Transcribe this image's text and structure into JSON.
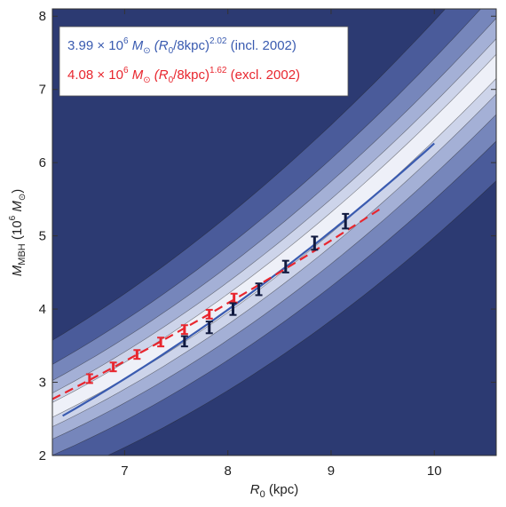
{
  "chart_data": {
    "type": "line",
    "xlabel_main": "R",
    "xlabel_sub": "0",
    "xlabel_unit": " (kpc)",
    "ylabel_main": "M",
    "ylabel_sub": "MBH",
    "ylabel_unit_open": " (10",
    "ylabel_unit_exp": "6",
    "ylabel_unit_sym": " M",
    "ylabel_unit_sun": "⊙",
    "ylabel_unit_close": ")",
    "xlim": [
      6.3,
      10.6
    ],
    "ylim": [
      2.0,
      8.1
    ],
    "x_ticks": [
      7,
      8,
      9,
      10
    ],
    "y_ticks": [
      2,
      3,
      4,
      5,
      6,
      7,
      8
    ],
    "grid": false,
    "legend_position": "top-left",
    "series": [
      {
        "name": "3.99 × 10^6 M⊙ (R0/8kpc)^2.02 (incl. 2002)",
        "legend_parts": {
          "coef": "3.99 × 10",
          "exp1": "6",
          "unit": " M",
          "sun": "⊙",
          "lparen": " (R",
          "sub": "0",
          "mid": "/8kpc)",
          "exp2": "2.02",
          "tail": " (incl. 2002)"
        },
        "color": "#3a5bb0",
        "dash": "solid",
        "coefficient": 3.99,
        "exponent": 2.02,
        "x_range": [
          6.4,
          10.0
        ],
        "points": [
          {
            "x": 7.58,
            "y": 3.56,
            "err": 0.07
          },
          {
            "x": 7.82,
            "y": 3.75,
            "err": 0.08
          },
          {
            "x": 8.05,
            "y": 4.0,
            "err": 0.08
          },
          {
            "x": 8.3,
            "y": 4.27,
            "err": 0.08
          },
          {
            "x": 8.56,
            "y": 4.58,
            "err": 0.08
          },
          {
            "x": 8.84,
            "y": 4.9,
            "err": 0.09
          },
          {
            "x": 9.14,
            "y": 5.2,
            "err": 0.1
          }
        ]
      },
      {
        "name": "4.08 × 10^6 M⊙ (R0/8kpc)^1.62 (excl. 2002)",
        "legend_parts": {
          "coef": "4.08 × 10",
          "exp1": "6",
          "unit": " M",
          "sun": "⊙",
          "lparen": " (R",
          "sub": "0",
          "mid": "/8kpc)",
          "exp2": "1.62",
          "tail": " (excl. 2002)"
        },
        "color": "#e8262e",
        "dash": "dashed",
        "coefficient": 4.08,
        "exponent": 1.62,
        "x_range": [
          6.3,
          9.5
        ],
        "points": [
          {
            "x": 6.66,
            "y": 3.05,
            "err": 0.06
          },
          {
            "x": 6.89,
            "y": 3.21,
            "err": 0.06
          },
          {
            "x": 7.12,
            "y": 3.38,
            "err": 0.06
          },
          {
            "x": 7.35,
            "y": 3.55,
            "err": 0.06
          },
          {
            "x": 7.58,
            "y": 3.72,
            "err": 0.06
          },
          {
            "x": 7.82,
            "y": 3.93,
            "err": 0.06
          },
          {
            "x": 8.06,
            "y": 4.15,
            "err": 0.06
          }
        ]
      }
    ],
    "contours": {
      "colors": [
        "#2c3a72",
        "#4a5b9a",
        "#7686bb",
        "#a4b0d6",
        "#cdd4ea",
        "#eef0f8"
      ],
      "center_slope": 1.01,
      "center_intercept": -4.0,
      "half_widths": [
        0.95,
        0.62,
        0.4,
        0.23,
        0.1
      ]
    }
  }
}
